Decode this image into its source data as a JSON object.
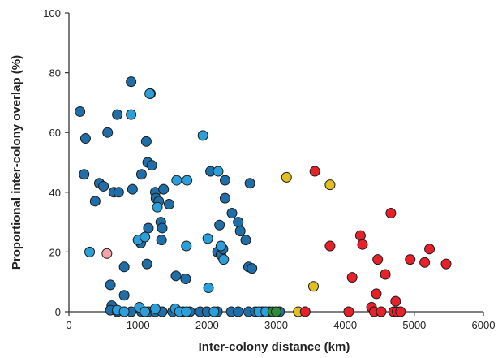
{
  "chart_data": {
    "type": "scatter",
    "xlabel": "Inter-colony distance (km)",
    "ylabel": "Proportional inter-colony overlap (%)",
    "xlim": [
      0,
      6000
    ],
    "ylim": [
      0,
      100
    ],
    "xticks": [
      "0",
      "1000",
      "2000",
      "3000",
      "4000",
      "5000",
      "6000"
    ],
    "yticks": [
      "0",
      "20",
      "40",
      "60",
      "80",
      "100"
    ],
    "grid": false,
    "legend": "none",
    "colors": {
      "dark_blue": "#1f6ea8",
      "light_blue": "#2a9fd9",
      "green": "#2e8b3c",
      "yellow": "#e0c020",
      "red": "#e8202a",
      "pink": "#f4a3a8"
    },
    "series": [
      {
        "color_key": "dark_blue",
        "points": [
          [
            160,
            67
          ],
          [
            240,
            58
          ],
          [
            220,
            46
          ],
          [
            380,
            37
          ],
          [
            440,
            43
          ],
          [
            500,
            42
          ],
          [
            560,
            60
          ],
          [
            700,
            66
          ],
          [
            650,
            40
          ],
          [
            720,
            40
          ],
          [
            900,
            77
          ],
          [
            920,
            41
          ],
          [
            1050,
            46
          ],
          [
            1120,
            57
          ],
          [
            1140,
            50
          ],
          [
            1200,
            49
          ],
          [
            1180,
            73
          ],
          [
            1250,
            40
          ],
          [
            1260,
            38
          ],
          [
            1300,
            37
          ],
          [
            1330,
            30
          ],
          [
            1350,
            28
          ],
          [
            1340,
            24
          ],
          [
            1370,
            41
          ],
          [
            1450,
            36
          ],
          [
            1040,
            23
          ],
          [
            1150,
            28
          ],
          [
            1130,
            16
          ],
          [
            800,
            15
          ],
          [
            600,
            9
          ],
          [
            800,
            5.5
          ],
          [
            620,
            2
          ],
          [
            1550,
            12
          ],
          [
            1690,
            11
          ],
          [
            2050,
            47
          ],
          [
            2150,
            20
          ],
          [
            2180,
            29
          ],
          [
            2200,
            19
          ],
          [
            2230,
            21
          ],
          [
            2260,
            44
          ],
          [
            2260,
            38
          ],
          [
            2360,
            33
          ],
          [
            2450,
            30
          ],
          [
            2480,
            27
          ],
          [
            2560,
            24
          ],
          [
            2600,
            15
          ],
          [
            2650,
            14.5
          ],
          [
            2620,
            43
          ],
          [
            600,
            0.5
          ],
          [
            700,
            0
          ],
          [
            900,
            0
          ],
          [
            1050,
            0
          ],
          [
            1150,
            0
          ],
          [
            1250,
            0
          ],
          [
            1350,
            0
          ],
          [
            1500,
            0
          ],
          [
            1650,
            0
          ],
          [
            1750,
            0
          ],
          [
            1900,
            0
          ],
          [
            2000,
            0
          ],
          [
            2150,
            0
          ],
          [
            2350,
            0
          ],
          [
            2450,
            0
          ],
          [
            2600,
            0
          ],
          [
            2700,
            0
          ],
          [
            2800,
            0
          ],
          [
            2900,
            0
          ],
          [
            3050,
            0
          ]
        ]
      },
      {
        "color_key": "light_blue",
        "points": [
          [
            300,
            20
          ],
          [
            900,
            66
          ],
          [
            1000,
            24
          ],
          [
            1100,
            25
          ],
          [
            1170,
            73
          ],
          [
            1280,
            35
          ],
          [
            1560,
            44
          ],
          [
            1710,
            44
          ],
          [
            1700,
            22
          ],
          [
            1940,
            59
          ],
          [
            2010,
            24.5
          ],
          [
            2020,
            8
          ],
          [
            2160,
            47
          ],
          [
            2240,
            17.5
          ],
          [
            2200,
            22
          ],
          [
            1020,
            1.5
          ],
          [
            1250,
            1
          ],
          [
            1540,
            1
          ],
          [
            700,
            0.5
          ],
          [
            800,
            0
          ],
          [
            1100,
            0
          ],
          [
            1600,
            0
          ],
          [
            1700,
            0
          ],
          [
            2100,
            0
          ],
          [
            2750,
            0
          ],
          [
            2850,
            0
          ]
        ]
      },
      {
        "color_key": "pink",
        "points": [
          [
            550,
            19.5
          ]
        ]
      },
      {
        "color_key": "green",
        "points": [
          [
            2950,
            0
          ],
          [
            3000,
            0
          ]
        ]
      },
      {
        "color_key": "yellow",
        "points": [
          [
            3150,
            45
          ],
          [
            3780,
            42.5
          ],
          [
            3540,
            8.5
          ],
          [
            3320,
            0
          ]
        ]
      },
      {
        "color_key": "red",
        "points": [
          [
            3560,
            47
          ],
          [
            3780,
            22
          ],
          [
            3420,
            0
          ],
          [
            4050,
            0
          ],
          [
            4100,
            11.5
          ],
          [
            4220,
            25.5
          ],
          [
            4250,
            22.5
          ],
          [
            4380,
            1.5
          ],
          [
            4420,
            0
          ],
          [
            4450,
            6
          ],
          [
            4470,
            17.5
          ],
          [
            4520,
            0
          ],
          [
            4580,
            12.5
          ],
          [
            4660,
            33
          ],
          [
            4700,
            0
          ],
          [
            4730,
            3.5
          ],
          [
            4750,
            0
          ],
          [
            4800,
            0
          ],
          [
            4940,
            17.5
          ],
          [
            5150,
            16.5
          ],
          [
            5220,
            21
          ],
          [
            5460,
            16
          ]
        ]
      }
    ]
  }
}
